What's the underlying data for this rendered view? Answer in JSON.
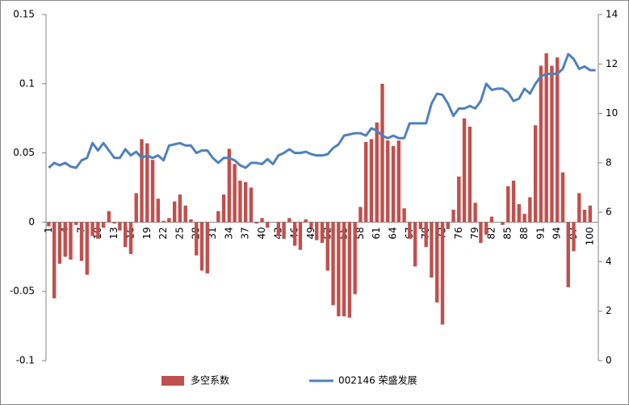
{
  "chart_data": {
    "type": "combo",
    "categories": [
      1,
      null,
      null,
      4,
      null,
      null,
      7,
      null,
      null,
      10,
      null,
      null,
      13,
      null,
      null,
      16,
      null,
      null,
      19,
      null,
      null,
      22,
      null,
      null,
      25,
      null,
      null,
      28,
      null,
      null,
      31,
      null,
      null,
      34,
      null,
      null,
      37,
      null,
      null,
      40,
      null,
      null,
      43,
      null,
      null,
      46,
      null,
      null,
      49,
      null,
      null,
      52,
      null,
      null,
      55,
      null,
      null,
      58,
      null,
      null,
      61,
      null,
      null,
      64,
      null,
      null,
      67,
      null,
      null,
      70,
      null,
      null,
      73,
      null,
      null,
      76,
      null,
      null,
      79,
      null,
      null,
      82,
      null,
      null,
      85,
      null,
      null,
      88,
      null,
      null,
      91,
      null,
      null,
      94,
      null,
      null,
      97,
      null,
      null,
      100,
      null
    ],
    "series": [
      {
        "name": "多空系数",
        "type": "bar",
        "color": "#c0504d",
        "values": [
          -0.003,
          -0.055,
          -0.03,
          -0.025,
          -0.027,
          -0.002,
          -0.028,
          -0.038,
          -0.01,
          -0.012,
          -0.004,
          0.008,
          -0.001,
          -0.006,
          -0.018,
          -0.023,
          0.021,
          0.06,
          0.057,
          0.045,
          0.017,
          0.001,
          0.003,
          0.015,
          0.02,
          0.012,
          0.002,
          -0.024,
          -0.035,
          -0.037,
          0,
          0.008,
          0.02,
          0.053,
          0.042,
          0.03,
          0.029,
          0.025,
          -0.001,
          0.003,
          -0.004,
          0,
          -0.01,
          -0.012,
          0.003,
          -0.017,
          -0.02,
          0.002,
          -0.004,
          -0.013,
          -0.015,
          -0.035,
          -0.06,
          -0.068,
          -0.068,
          -0.069,
          -0.052,
          0.011,
          0.058,
          0.06,
          0.072,
          0.1,
          0.059,
          0.055,
          0.059,
          0.01,
          -0.012,
          -0.032,
          -0.005,
          -0.018,
          -0.04,
          -0.058,
          -0.074,
          -0.005,
          0.009,
          0.033,
          0.075,
          0.069,
          0.014,
          -0.015,
          -0.009,
          0.004,
          0,
          -0.002,
          0.026,
          0.03,
          0.013,
          0.006,
          0.018,
          0.07,
          0.113,
          0.122,
          0.113,
          0.119,
          0.036,
          -0.047,
          -0.021,
          0.021,
          0.009,
          0.012,
          0
        ]
      },
      {
        "name": "002146 荣盛发展",
        "type": "line",
        "axis": "y2",
        "color": "#4f81bd",
        "values": [
          7.8,
          8.0,
          7.9,
          8.0,
          7.85,
          7.8,
          8.1,
          8.2,
          8.8,
          8.5,
          8.8,
          8.5,
          8.2,
          8.2,
          8.55,
          8.3,
          8.45,
          8.2,
          8.3,
          8.2,
          8.3,
          8.1,
          8.7,
          8.75,
          8.8,
          8.7,
          8.7,
          8.4,
          8.5,
          8.5,
          8.2,
          8.0,
          8.2,
          8.2,
          8.1,
          7.9,
          7.8,
          8.0,
          8.0,
          7.95,
          8.15,
          7.95,
          8.3,
          8.4,
          8.55,
          8.4,
          8.4,
          8.45,
          8.35,
          8.3,
          8.3,
          8.35,
          8.6,
          8.75,
          9.1,
          9.15,
          9.2,
          9.2,
          9.1,
          9.4,
          9.3,
          9.1,
          9.0,
          9.1,
          9.0,
          9.0,
          9.6,
          9.6,
          9.6,
          9.6,
          10.4,
          10.8,
          10.75,
          10.4,
          9.9,
          10.2,
          10.2,
          10.3,
          10.2,
          10.5,
          11.2,
          10.95,
          11.0,
          11.0,
          10.85,
          10.5,
          10.6,
          11.0,
          10.8,
          11.2,
          11.5,
          11.6,
          11.6,
          11.6,
          11.8,
          12.4,
          12.2,
          11.8,
          11.9,
          11.75,
          11.75
        ]
      }
    ],
    "ylim": [
      -0.1,
      0.15
    ],
    "yticks": [
      -0.1,
      -0.05,
      0,
      0.05,
      0.1,
      0.15
    ],
    "y2lim": [
      0,
      14
    ],
    "y2ticks": [
      0,
      2,
      4,
      6,
      8,
      10,
      12,
      14
    ],
    "legend": "bottom"
  }
}
